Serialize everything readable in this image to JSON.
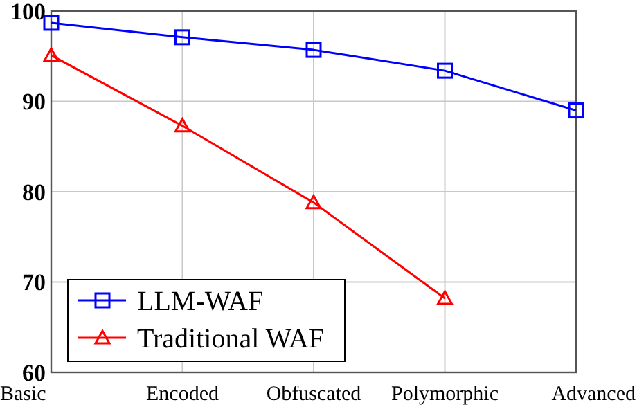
{
  "chart_data": {
    "type": "line",
    "categories": [
      "Basic",
      "Encoded",
      "Obfuscated",
      "Polymorphic",
      "Advanced"
    ],
    "series": [
      {
        "name": "LLM-WAF",
        "color": "#0000ff",
        "marker": "square",
        "values": [
          98.7,
          97.1,
          95.7,
          93.4,
          89.0
        ]
      },
      {
        "name": "Traditional WAF",
        "color": "#ff0000",
        "marker": "triangle",
        "values": [
          95.1,
          87.3,
          78.8,
          68.2,
          null
        ]
      }
    ],
    "ylim": [
      60,
      100
    ],
    "yticks": [
      60,
      70,
      80,
      90,
      100
    ],
    "grid": true,
    "legend": "bottom left",
    "line_style": "solid"
  }
}
